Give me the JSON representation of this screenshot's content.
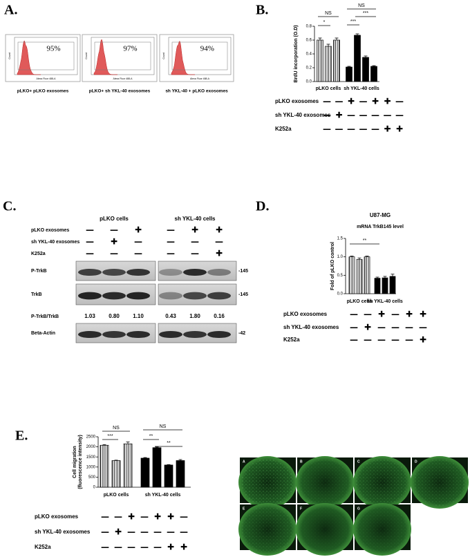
{
  "panel_labels": [
    "A.",
    "B.",
    "C.",
    "D.",
    "E."
  ],
  "flow": {
    "x_axis_label": "Alexa Fluor 488-A",
    "y_axis_label": "Count",
    "plots": [
      {
        "percent": "95%",
        "caption": "pLKO+ pLKO exosomes"
      },
      {
        "percent": "97%",
        "caption": "pLKO+ sh YKL-40 exosomes"
      },
      {
        "percent": "94%",
        "caption": "sh YKL-40 + pLKO exosomes"
      }
    ]
  },
  "chart_data": [
    {
      "type": "bar",
      "ylabel": [
        "BrdU incorporation (O.D)"
      ],
      "ylim": [
        0,
        0.8
      ],
      "yticks": [
        {
          "value": 0,
          "label": "0.0"
        },
        0.2,
        0.4,
        0.6,
        0.8
      ],
      "values": [
        0.6,
        0.51,
        0.6,
        0.21,
        0.67,
        0.35,
        0.22
      ],
      "errors": [
        0.03,
        0.03,
        0.03,
        0.01,
        0.02,
        0.02,
        0.01
      ],
      "bar_fill": [
        "hatch",
        "hatch",
        "hatch",
        "black",
        "black",
        "black",
        "black"
      ],
      "group_labels": [
        "pLKO cells",
        "sh YKL-40 cells"
      ],
      "annotations": [
        "NS",
        "*",
        "NS",
        "***",
        "***"
      ],
      "conditions": [
        {
          "label": "pLKO exosomes",
          "marks": [
            "—",
            "—",
            "✚",
            "—",
            "✚",
            "✚",
            "—"
          ]
        },
        {
          "label": "sh YKL-40 exosomes",
          "marks": [
            "—",
            "✚",
            "—",
            "—",
            "—",
            "—",
            "—"
          ]
        },
        {
          "label": "K252a",
          "marks": [
            "—",
            "—",
            "—",
            "—",
            "—",
            "✚",
            "✚"
          ]
        }
      ]
    },
    {
      "type": "bar",
      "title": "U87-MG",
      "subtitle": "mRNA TrkB145 level",
      "ylabel": [
        "Fold of pLKO control"
      ],
      "ylim": [
        0,
        1.5
      ],
      "yticks": [
        {
          "value": 0,
          "label": "0.0"
        },
        0.5,
        {
          "value": 1,
          "label": "1.0"
        },
        1.5
      ],
      "values": [
        1.0,
        0.93,
        1.0,
        0.42,
        0.43,
        0.47
      ],
      "errors": [
        0.02,
        0.04,
        0.02,
        0.03,
        0.04,
        0.06
      ],
      "bar_fill": [
        "hatch",
        "hatch",
        "hatch",
        "black",
        "black",
        "black"
      ],
      "group_labels": [
        "pLKO cells",
        "sh YKL-40 cells"
      ],
      "annotations": [
        "**"
      ],
      "conditions": [
        {
          "label": "pLKO exosomes",
          "marks": [
            "—",
            "—",
            "✚",
            "—",
            "✚",
            "✚"
          ]
        },
        {
          "label": "sh YKL-40 exosomes",
          "marks": [
            "—",
            "✚",
            "—",
            "—",
            "—",
            "—"
          ]
        },
        {
          "label": "K252a",
          "marks": [
            "—",
            "—",
            "—",
            "—",
            "—",
            "✚"
          ]
        }
      ]
    },
    {
      "type": "bar",
      "ylabel": [
        "Cell migration",
        "(fluorescence intensity)"
      ],
      "ylim": [
        0,
        2500
      ],
      "yticks": [
        0,
        500,
        1000,
        1500,
        2000,
        2500
      ],
      "values": [
        2080,
        1320,
        2150,
        1440,
        1960,
        1100,
        1320
      ],
      "errors": [
        30,
        20,
        90,
        30,
        30,
        20,
        50
      ],
      "bar_fill": [
        "hatch",
        "hatch",
        "hatch",
        "black",
        "black",
        "black",
        "black"
      ],
      "group_labels": [
        "pLKO cells",
        "sh YKL-40 cells"
      ],
      "annotations": [
        "NS",
        "***",
        "NS",
        "**",
        "**"
      ],
      "conditions": [
        {
          "label": "pLKO exosomes",
          "marks": [
            "—",
            "—",
            "✚",
            "—",
            "✚",
            "✚",
            "—"
          ]
        },
        {
          "label": "sh YKL-40 exosomes",
          "marks": [
            "—",
            "✚",
            "—",
            "—",
            "—",
            "—",
            "—"
          ]
        },
        {
          "label": "K252a",
          "marks": [
            "—",
            "—",
            "—",
            "—",
            "—",
            "✚",
            "✚"
          ]
        }
      ]
    }
  ],
  "western": {
    "group_labels": [
      "pLKO cells",
      "sh YKL-40 cells"
    ],
    "conditions": [
      {
        "label": "pLKO exosomes",
        "marks": [
          "—",
          "—",
          "✚",
          "—",
          "✚",
          "✚"
        ]
      },
      {
        "label": "sh YKL-40 exosomes",
        "marks": [
          "—",
          "✚",
          "—",
          "—",
          "—",
          "—"
        ]
      },
      {
        "label": "K252a",
        "marks": [
          "—",
          "—",
          "—",
          "—",
          "—",
          "✚"
        ]
      }
    ],
    "blots": [
      "P-TrkB",
      "TrkB"
    ],
    "ratio_label": "P-TrkB/TrkB",
    "ratios": [
      "1.03",
      "0.80",
      "1.10",
      "0.43",
      "1.80",
      "0.16"
    ],
    "loading": "Beta-Actin",
    "sizes": [
      "-145",
      "-145",
      "-42"
    ]
  },
  "migration_images": {
    "labels": [
      "A",
      "B",
      "C",
      "D",
      "E",
      "F",
      "G"
    ]
  }
}
